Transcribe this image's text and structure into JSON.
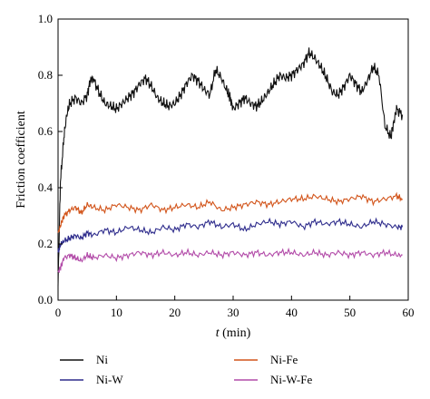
{
  "chart_data": {
    "type": "line",
    "xlabel_var": "t",
    "xlabel_unit": " (min)",
    "ylabel": "Friction coefficient",
    "xlim": [
      0,
      60
    ],
    "ylim": [
      0.0,
      1.0
    ],
    "x_ticks": [
      "0",
      "10",
      "20",
      "30",
      "40",
      "50",
      "60"
    ],
    "y_ticks": [
      "0.0",
      "0.2",
      "0.4",
      "0.6",
      "0.8",
      "1.0"
    ],
    "grid": false,
    "legend_position": "bottom",
    "series": [
      {
        "name": "Ni",
        "color": "#111111",
        "x": [
          0,
          0.4,
          1,
          1.5,
          2,
          3,
          4,
          5,
          5.5,
          6,
          7,
          8,
          9,
          10,
          11,
          12,
          13,
          14,
          15,
          16,
          17,
          18,
          19,
          20,
          21,
          22,
          23,
          24,
          25,
          26,
          27,
          28,
          29,
          29.5,
          30,
          31,
          32,
          33,
          34,
          35,
          36,
          37,
          38,
          39,
          40,
          41,
          42,
          43,
          44,
          45,
          46,
          47,
          48,
          49,
          50,
          51,
          52,
          53,
          54,
          55,
          56,
          57,
          57.5,
          58,
          59
        ],
        "y": [
          0.05,
          0.42,
          0.58,
          0.66,
          0.7,
          0.72,
          0.7,
          0.73,
          0.78,
          0.79,
          0.74,
          0.7,
          0.69,
          0.68,
          0.7,
          0.72,
          0.74,
          0.77,
          0.79,
          0.76,
          0.72,
          0.7,
          0.69,
          0.7,
          0.73,
          0.77,
          0.8,
          0.78,
          0.75,
          0.73,
          0.82,
          0.79,
          0.74,
          0.72,
          0.68,
          0.7,
          0.72,
          0.7,
          0.69,
          0.71,
          0.74,
          0.77,
          0.8,
          0.79,
          0.8,
          0.82,
          0.84,
          0.88,
          0.86,
          0.83,
          0.79,
          0.74,
          0.73,
          0.76,
          0.8,
          0.77,
          0.74,
          0.78,
          0.83,
          0.8,
          0.62,
          0.58,
          0.63,
          0.68,
          0.66
        ]
      },
      {
        "name": "Ni-Fe",
        "color": "#d2541a",
        "x": [
          0,
          0.5,
          1,
          2,
          3,
          4,
          5,
          6,
          8,
          10,
          12,
          14,
          16,
          18,
          20,
          22,
          24,
          26,
          28,
          30,
          32,
          34,
          36,
          38,
          40,
          42,
          44,
          46,
          48,
          50,
          52,
          54,
          56,
          58,
          59
        ],
        "y": [
          0.24,
          0.27,
          0.3,
          0.32,
          0.33,
          0.31,
          0.34,
          0.33,
          0.32,
          0.34,
          0.33,
          0.32,
          0.34,
          0.32,
          0.33,
          0.34,
          0.33,
          0.35,
          0.32,
          0.33,
          0.34,
          0.35,
          0.34,
          0.35,
          0.36,
          0.36,
          0.37,
          0.36,
          0.35,
          0.36,
          0.37,
          0.35,
          0.36,
          0.37,
          0.36
        ]
      },
      {
        "name": "Ni-W",
        "color": "#2e2c8c",
        "x": [
          0,
          0.5,
          1,
          2,
          3,
          4,
          5,
          6,
          8,
          10,
          12,
          14,
          16,
          18,
          20,
          22,
          24,
          26,
          28,
          30,
          32,
          34,
          36,
          38,
          40,
          42,
          44,
          46,
          48,
          50,
          52,
          54,
          56,
          58,
          59
        ],
        "y": [
          0.17,
          0.2,
          0.21,
          0.22,
          0.23,
          0.22,
          0.24,
          0.23,
          0.25,
          0.24,
          0.26,
          0.25,
          0.24,
          0.26,
          0.25,
          0.27,
          0.26,
          0.28,
          0.26,
          0.27,
          0.25,
          0.27,
          0.28,
          0.27,
          0.28,
          0.26,
          0.28,
          0.27,
          0.28,
          0.27,
          0.26,
          0.28,
          0.27,
          0.26,
          0.26
        ]
      },
      {
        "name": "Ni-W-Fe",
        "color": "#b24aa8",
        "x": [
          0,
          0.5,
          1,
          2,
          3,
          4,
          5,
          6,
          8,
          10,
          12,
          14,
          16,
          18,
          20,
          22,
          24,
          26,
          28,
          30,
          32,
          34,
          36,
          38,
          40,
          42,
          44,
          46,
          48,
          50,
          52,
          54,
          56,
          58,
          59
        ],
        "y": [
          0.1,
          0.12,
          0.15,
          0.16,
          0.15,
          0.14,
          0.16,
          0.15,
          0.16,
          0.15,
          0.16,
          0.17,
          0.16,
          0.17,
          0.16,
          0.17,
          0.16,
          0.17,
          0.16,
          0.17,
          0.16,
          0.17,
          0.16,
          0.17,
          0.17,
          0.16,
          0.17,
          0.16,
          0.17,
          0.16,
          0.17,
          0.16,
          0.17,
          0.16,
          0.16
        ]
      }
    ]
  }
}
